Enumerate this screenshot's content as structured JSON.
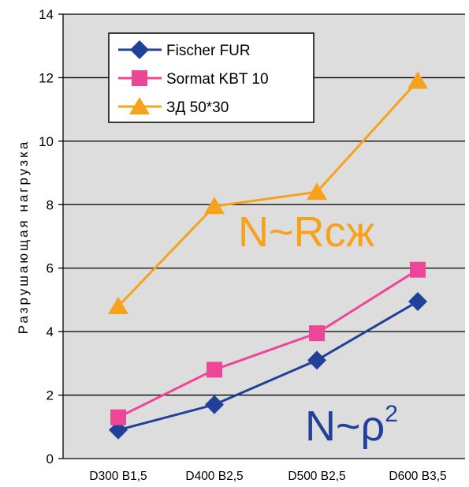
{
  "chart_data": {
    "type": "line",
    "categories": [
      "D300 B1,5",
      "D400 B2,5",
      "D500 B2,5",
      "D600 B3,5"
    ],
    "series": [
      {
        "name": "Fischer FUR",
        "values": [
          0.9,
          1.7,
          3.1,
          4.95
        ],
        "color": "#21409a",
        "marker": "diamond"
      },
      {
        "name": "Sormat KBT 10",
        "values": [
          1.3,
          2.8,
          3.95,
          5.95
        ],
        "color": "#ec4699",
        "marker": "square"
      },
      {
        "name": "ЗД 50*30",
        "values": [
          4.8,
          7.95,
          8.4,
          11.9
        ],
        "color": "#f7a21b",
        "marker": "triangle"
      }
    ],
    "title": "",
    "xlabel": "",
    "ylabel": "Разрушающая нагрузка",
    "ylim": [
      0,
      14
    ],
    "yticks": [
      0,
      2,
      4,
      6,
      8,
      10,
      12,
      14
    ],
    "grid": true,
    "legend": "top-left",
    "annotations": [
      {
        "text": "N~Rсж",
        "color": "#f7a21b"
      },
      {
        "text": "N~ρ",
        "superscript": "2",
        "color": "#21409a"
      }
    ],
    "plot_background": "#dddddd"
  }
}
